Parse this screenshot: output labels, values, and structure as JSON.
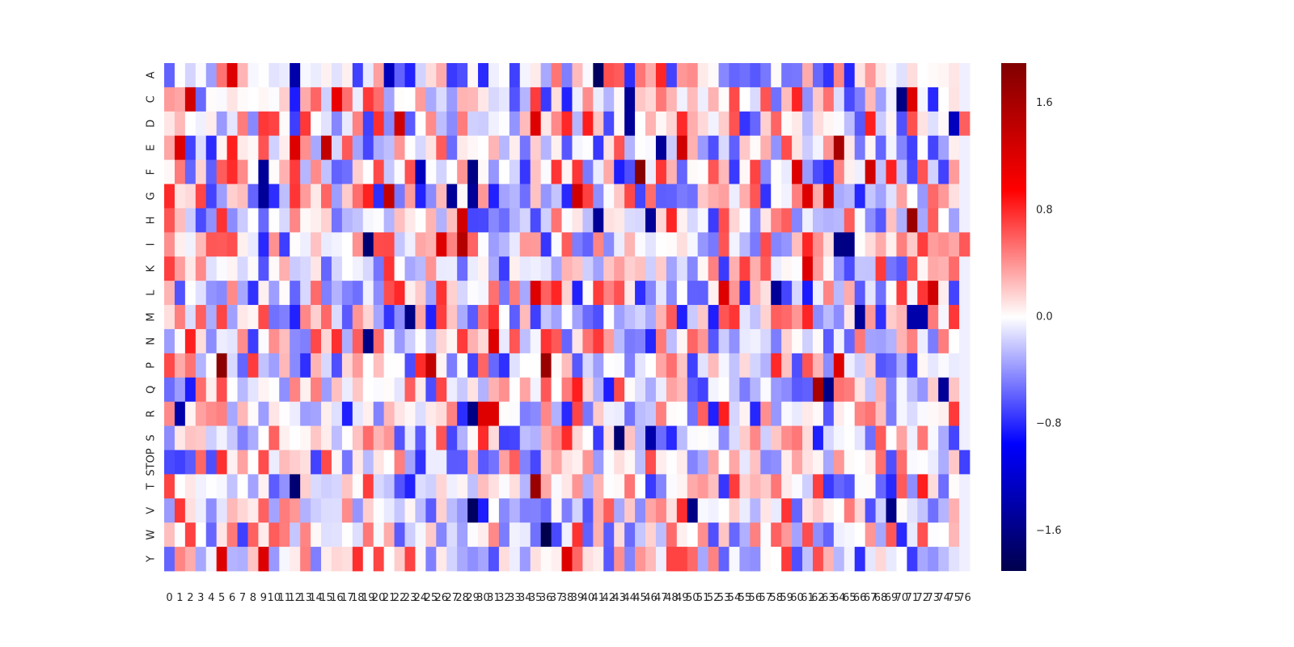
{
  "chart_data": {
    "type": "heatmap",
    "x_labels": [
      "0",
      "1",
      "2",
      "3",
      "4",
      "5",
      "6",
      "7",
      "8",
      "9",
      "10",
      "11",
      "12",
      "13",
      "14",
      "15",
      "16",
      "17",
      "18",
      "19",
      "20",
      "21",
      "22",
      "23",
      "24",
      "25",
      "26",
      "27",
      "28",
      "29",
      "30",
      "31",
      "32",
      "33",
      "34",
      "35",
      "36",
      "37",
      "38",
      "39",
      "40",
      "41",
      "42",
      "43",
      "44",
      "45",
      "46",
      "47",
      "48",
      "49",
      "50",
      "51",
      "52",
      "53",
      "54",
      "55",
      "56",
      "57",
      "58",
      "59",
      "60",
      "61",
      "62",
      "63",
      "64",
      "65",
      "66",
      "67",
      "68",
      "69",
      "70",
      "71",
      "72",
      "73",
      "74",
      "75",
      "76"
    ],
    "y_labels": [
      "A",
      "C",
      "D",
      "E",
      "F",
      "G",
      "H",
      "I",
      "K",
      "L",
      "M",
      "N",
      "P",
      "Q",
      "R",
      "S",
      "STOP",
      "T",
      "V",
      "W",
      "Y"
    ],
    "colorbar": {
      "vmin": -1.9,
      "vmax": 1.9,
      "ticks": [
        "1.6",
        "0.8",
        "0.0",
        "−0.8",
        "−1.6"
      ],
      "tick_values": [
        1.6,
        0.8,
        0.0,
        -0.8,
        -1.6
      ],
      "colormap": "seismic",
      "colors": [
        "#00004d",
        "#0000ff",
        "#ffffff",
        "#ff0000",
        "#800000"
      ]
    },
    "highlighted_cells": [
      {
        "y": "A",
        "x": "12",
        "value": -1.4
      },
      {
        "y": "A",
        "x": "21",
        "value": -1.3
      },
      {
        "y": "A",
        "x": "41",
        "value": -1.8
      },
      {
        "y": "A",
        "x": "6",
        "value": 1.2
      },
      {
        "y": "C",
        "x": "2",
        "value": 1.3
      },
      {
        "y": "C",
        "x": "16",
        "value": 1.1
      },
      {
        "y": "C",
        "x": "44",
        "value": -1.5
      },
      {
        "y": "C",
        "x": "70",
        "value": -1.6
      },
      {
        "y": "C",
        "x": "71",
        "value": 1.2
      },
      {
        "y": "D",
        "x": "22",
        "value": 1.3
      },
      {
        "y": "D",
        "x": "35",
        "value": 1.2
      },
      {
        "y": "D",
        "x": "44",
        "value": -1.5
      },
      {
        "y": "D",
        "x": "75",
        "value": -1.3
      },
      {
        "y": "E",
        "x": "1",
        "value": 1.2
      },
      {
        "y": "E",
        "x": "12",
        "value": 1.2
      },
      {
        "y": "E",
        "x": "15",
        "value": 1.4
      },
      {
        "y": "E",
        "x": "47",
        "value": -1.5
      },
      {
        "y": "E",
        "x": "49",
        "value": 1.3
      },
      {
        "y": "E",
        "x": "64",
        "value": 1.6
      },
      {
        "y": "F",
        "x": "9",
        "value": -1.5
      },
      {
        "y": "F",
        "x": "24",
        "value": -1.3
      },
      {
        "y": "F",
        "x": "29",
        "value": -1.6
      },
      {
        "y": "F",
        "x": "45",
        "value": 1.85
      },
      {
        "y": "F",
        "x": "60",
        "value": 1.2
      },
      {
        "y": "F",
        "x": "67",
        "value": 1.3
      },
      {
        "y": "G",
        "x": "9",
        "value": -1.5
      },
      {
        "y": "G",
        "x": "21",
        "value": 1.4
      },
      {
        "y": "G",
        "x": "27",
        "value": -1.5
      },
      {
        "y": "G",
        "x": "29",
        "value": -1.5
      },
      {
        "y": "G",
        "x": "39",
        "value": 1.3
      },
      {
        "y": "G",
        "x": "61",
        "value": 1.2
      },
      {
        "y": "G",
        "x": "63",
        "value": 1.3
      },
      {
        "y": "H",
        "x": "28",
        "value": 1.3
      },
      {
        "y": "H",
        "x": "41",
        "value": -1.5
      },
      {
        "y": "H",
        "x": "46",
        "value": -1.5
      },
      {
        "y": "H",
        "x": "71",
        "value": 1.7
      },
      {
        "y": "I",
        "x": "19",
        "value": -1.7
      },
      {
        "y": "I",
        "x": "26",
        "value": 1.2
      },
      {
        "y": "I",
        "x": "28",
        "value": 1.5
      },
      {
        "y": "I",
        "x": "64",
        "value": -1.6
      },
      {
        "y": "I",
        "x": "65",
        "value": -1.6
      },
      {
        "y": "K",
        "x": "61",
        "value": 1.2
      },
      {
        "y": "L",
        "x": "35",
        "value": 1.2
      },
      {
        "y": "L",
        "x": "53",
        "value": 1.2
      },
      {
        "y": "L",
        "x": "58",
        "value": -1.5
      },
      {
        "y": "L",
        "x": "73",
        "value": 1.3
      },
      {
        "y": "M",
        "x": "23",
        "value": -1.6
      },
      {
        "y": "M",
        "x": "66",
        "value": -1.5
      },
      {
        "y": "M",
        "x": "71",
        "value": -1.4
      },
      {
        "y": "M",
        "x": "72",
        "value": -1.4
      },
      {
        "y": "N",
        "x": "19",
        "value": -1.6
      },
      {
        "y": "N",
        "x": "31",
        "value": 1.2
      },
      {
        "y": "P",
        "x": "5",
        "value": 1.8
      },
      {
        "y": "P",
        "x": "25",
        "value": 1.4
      },
      {
        "y": "P",
        "x": "36",
        "value": 1.7
      },
      {
        "y": "P",
        "x": "64",
        "value": 1.2
      },
      {
        "y": "Q",
        "x": "62",
        "value": 1.6
      },
      {
        "y": "Q",
        "x": "63",
        "value": -1.6
      },
      {
        "y": "Q",
        "x": "74",
        "value": -1.5
      },
      {
        "y": "R",
        "x": "1",
        "value": -1.4
      },
      {
        "y": "R",
        "x": "29",
        "value": -1.6
      },
      {
        "y": "R",
        "x": "30",
        "value": 1.2
      },
      {
        "y": "R",
        "x": "31",
        "value": 1.2
      },
      {
        "y": "S",
        "x": "43",
        "value": -1.7
      },
      {
        "y": "S",
        "x": "46",
        "value": -1.4
      },
      {
        "y": "T",
        "x": "12",
        "value": -1.7
      },
      {
        "y": "T",
        "x": "35",
        "value": 1.7
      },
      {
        "y": "V",
        "x": "29",
        "value": -1.8
      },
      {
        "y": "V",
        "x": "50",
        "value": -1.6
      },
      {
        "y": "V",
        "x": "69",
        "value": -1.6
      },
      {
        "y": "W",
        "x": "36",
        "value": -1.9
      },
      {
        "y": "Y",
        "x": "5",
        "value": 1.2
      },
      {
        "y": "Y",
        "x": "9",
        "value": 1.2
      },
      {
        "y": "Y",
        "x": "38",
        "value": 1.2
      }
    ],
    "xlabel": "",
    "ylabel": "",
    "title": ""
  }
}
